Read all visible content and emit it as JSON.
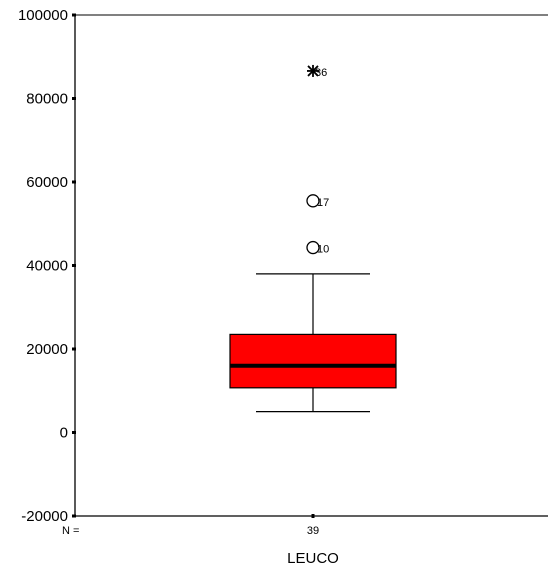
{
  "chart_data": {
    "type": "boxplot",
    "title": "",
    "xlabel": "LEUCO",
    "ylabel": "",
    "ylim": [
      -20000,
      100000
    ],
    "yticks": [
      -20000,
      0,
      20000,
      40000,
      60000,
      80000,
      100000
    ],
    "ytick_labels": [
      "-20000",
      "0",
      "20000",
      "40000",
      "60000",
      "80000",
      "100000"
    ],
    "grid": false,
    "n_label": "N =",
    "box_color": "#ff0000",
    "boxes": [
      {
        "category": "LEUCO",
        "n": "39",
        "whisker_low": 5000,
        "q1": 10700,
        "median": 16000,
        "q3": 23500,
        "whisker_high": 38000,
        "outliers": [
          {
            "value": 44300,
            "label": "10",
            "marker": "circle"
          },
          {
            "value": 55500,
            "label": "17",
            "marker": "circle"
          }
        ],
        "extremes": [
          {
            "value": 86600,
            "label": "36",
            "marker": "star"
          }
        ]
      }
    ]
  }
}
